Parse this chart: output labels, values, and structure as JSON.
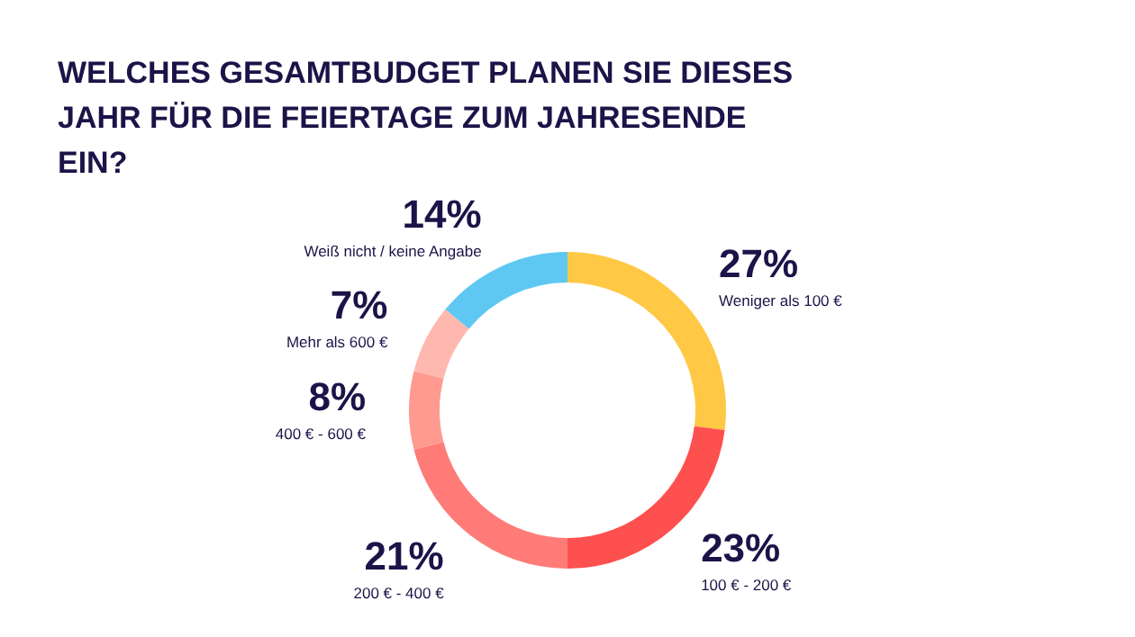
{
  "chart_data": {
    "type": "donut",
    "title": "WELCHES GESAMTBUDGET PLANEN SIE DIESES JAHR FÜR DIE FEIERTAGE ZUM JAHRESENDE EIN?",
    "categories": [
      "Weniger als 100 €",
      "100 € - 200 €",
      "200 € - 400 €",
      "400 € - 600 €",
      "Mehr als 600 €",
      "Weiß nicht / keine Angabe"
    ],
    "values": [
      27,
      23,
      21,
      8,
      7,
      14
    ],
    "value_labels": [
      "27%",
      "23%",
      "21%",
      "8%",
      "7%",
      "14%"
    ],
    "colors": [
      "#ffc845",
      "#ff5050",
      "#ff7b78",
      "#ff9a90",
      "#ffb8b0",
      "#5fc8f2"
    ]
  }
}
